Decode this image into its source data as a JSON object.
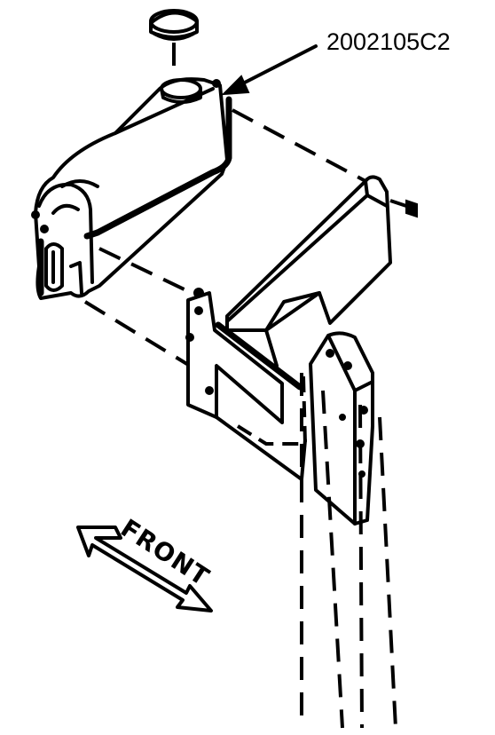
{
  "diagram": {
    "part_number": "2002105C2",
    "direction_label": "FRONT"
  },
  "colors": {
    "ink": "#000000",
    "paper": "#ffffff"
  },
  "icons": {
    "direction_arrow": "arrow-icon"
  }
}
